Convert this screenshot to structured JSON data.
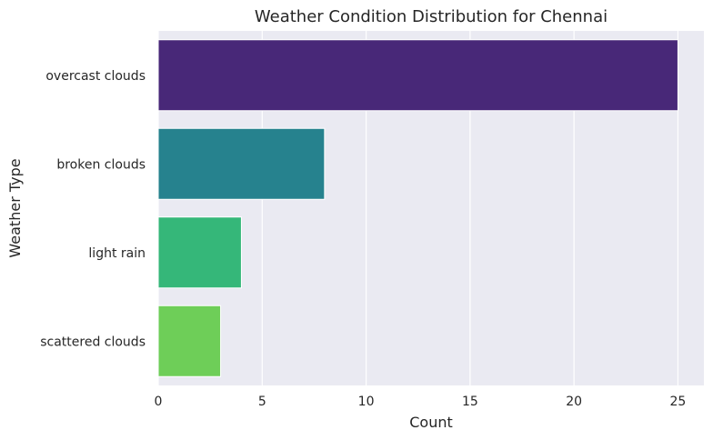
{
  "chart_data": {
    "type": "bar",
    "orientation": "horizontal",
    "title": "Weather Condition Distribution for Chennai",
    "xlabel": "Count",
    "ylabel": "Weather Type",
    "categories": [
      "overcast clouds",
      "broken clouds",
      "light rain",
      "scattered clouds"
    ],
    "values": [
      25,
      8,
      4,
      3
    ],
    "bar_colors": [
      "#482878",
      "#26828e",
      "#35b779",
      "#6ece58"
    ],
    "xlim": [
      0,
      26.25
    ],
    "xticks": [
      0,
      5,
      10,
      15,
      20,
      25
    ],
    "grid": true,
    "grid_color": "#ffffff",
    "plot_background": "#eaeaf2",
    "legend": "none"
  }
}
